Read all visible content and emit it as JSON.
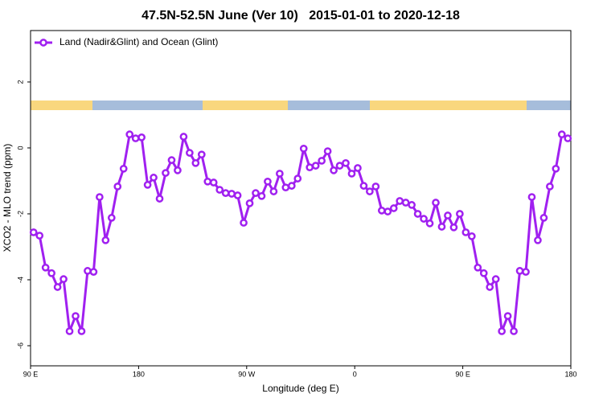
{
  "chart_data": {
    "type": "line",
    "title": "47.5N-52.5N June (Ver 10)   2015-01-01 to 2020-12-18",
    "x_label": "Longitude (deg E)",
    "y_label": "XCO2 - MLO trend (ppm)",
    "xlim": [
      90,
      540
    ],
    "xticks": [
      {
        "value": 90,
        "label": "90 E"
      },
      {
        "value": 180,
        "label": "180"
      },
      {
        "value": 270,
        "label": "90 W"
      },
      {
        "value": 360,
        "label": "0"
      },
      {
        "value": 450,
        "label": "90 E"
      },
      {
        "value": 540,
        "label": "180"
      }
    ],
    "ylim": [
      -6.61,
      3.56
    ],
    "yticks": [
      -6,
      -4,
      -2,
      0,
      2
    ],
    "legend": "top-left",
    "x": [
      92.5,
      97.5,
      102.5,
      107.5,
      112.5,
      117.5,
      122.5,
      127.5,
      132.5,
      137.5,
      142.5,
      147.5,
      152.5,
      157.5,
      162.5,
      167.5,
      172.5,
      177.5,
      182.5,
      187.5,
      192.5,
      197.5,
      202.5,
      207.5,
      212.5,
      217.5,
      222.5,
      227.5,
      232.5,
      237.5,
      242.5,
      247.5,
      252.5,
      257.5,
      262.5,
      267.5,
      272.5,
      277.5,
      282.5,
      287.5,
      292.5,
      297.5,
      302.5,
      307.5,
      312.5,
      317.5,
      322.5,
      327.5,
      332.5,
      337.5,
      342.5,
      347.5,
      352.5,
      357.5,
      362.5,
      367.5,
      372.5,
      377.5,
      382.5,
      387.5,
      392.5,
      397.5,
      402.5,
      407.5,
      412.5,
      417.5,
      422.5,
      427.5,
      432.5,
      437.5,
      442.5,
      447.5,
      452.5,
      457.5,
      462.5,
      467.5,
      472.5,
      477.5,
      482.5,
      487.5,
      492.5,
      497.5,
      502.5,
      507.5,
      512.5,
      517.5,
      522.5,
      527.5,
      532.5,
      537.5
    ],
    "series": [
      {
        "name": "Land (Nadir&Glint) and Ocean (Glint)",
        "color": "#a020f0",
        "values": [
          -2.56,
          -2.66,
          -3.63,
          -3.8,
          -4.22,
          -3.98,
          -5.56,
          -5.1,
          -5.56,
          -3.73,
          -3.76,
          -1.49,
          -2.8,
          -2.12,
          -1.17,
          -0.63,
          0.41,
          0.29,
          0.32,
          -1.12,
          -0.9,
          -1.54,
          -0.76,
          -0.37,
          -0.68,
          0.34,
          -0.15,
          -0.46,
          -0.2,
          -1.02,
          -1.05,
          -1.27,
          -1.37,
          -1.39,
          -1.44,
          -2.27,
          -1.68,
          -1.37,
          -1.46,
          -1.02,
          -1.32,
          -0.78,
          -1.2,
          -1.15,
          -0.93,
          -0.02,
          -0.59,
          -0.54,
          -0.39,
          -0.1,
          -0.68,
          -0.54,
          -0.46,
          -0.78,
          -0.61,
          -1.15,
          -1.32,
          -1.17,
          -1.9,
          -1.93,
          -1.83,
          -1.61,
          -1.66,
          -1.73,
          -2.0,
          -2.15,
          -2.29,
          -1.66,
          -2.39,
          -2.05,
          -2.41,
          -2.0,
          -2.56,
          -2.68,
          -3.63,
          -3.8,
          -4.22,
          -3.98,
          -5.56,
          -5.1,
          -5.56,
          -3.73,
          -3.76,
          -1.49,
          -2.8,
          -2.12,
          -1.17,
          -0.63,
          0.41,
          0.29
        ]
      }
    ]
  }
}
